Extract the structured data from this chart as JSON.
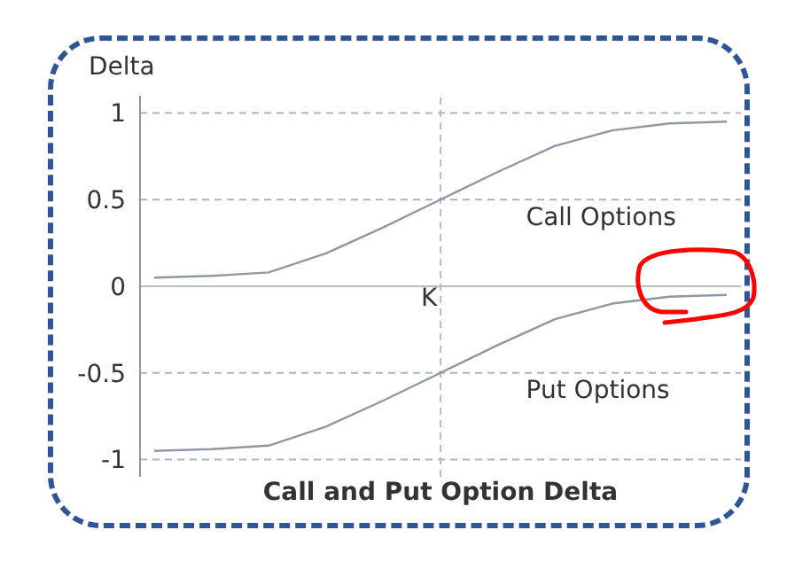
{
  "chart_data": {
    "type": "line",
    "title": "Call and Put Option Delta",
    "ylabel": "Delta",
    "categories": [
      null,
      null,
      null,
      null,
      null,
      null,
      null,
      null,
      null,
      null,
      null
    ],
    "series": [
      {
        "name": "Call Options",
        "color": "#8e98a3",
        "values": [
          0.05,
          0.06,
          0.08,
          0.19,
          0.34,
          0.5,
          0.66,
          0.81,
          0.9,
          0.94,
          0.95
        ]
      },
      {
        "name": "Put Options",
        "color": "#8e98a3",
        "values": [
          -0.95,
          -0.94,
          -0.92,
          -0.81,
          -0.66,
          -0.5,
          -0.34,
          -0.19,
          -0.1,
          -0.06,
          -0.05
        ]
      }
    ],
    "ylim": [
      -1.1,
      1.1
    ],
    "yticks": [
      -1,
      -0.5,
      0,
      0.5,
      1
    ],
    "grid": "y",
    "tick_labels": "y",
    "legend": false,
    "marker": "none",
    "line_style": "solid",
    "ref_lines": [
      {
        "axis": "y",
        "value": 0,
        "label": null,
        "color": "#b8bec4",
        "line_style": "solid"
      },
      {
        "axis": "x",
        "label": "K",
        "color": "#b8bec4",
        "line_style": "dashed"
      }
    ]
  }
}
